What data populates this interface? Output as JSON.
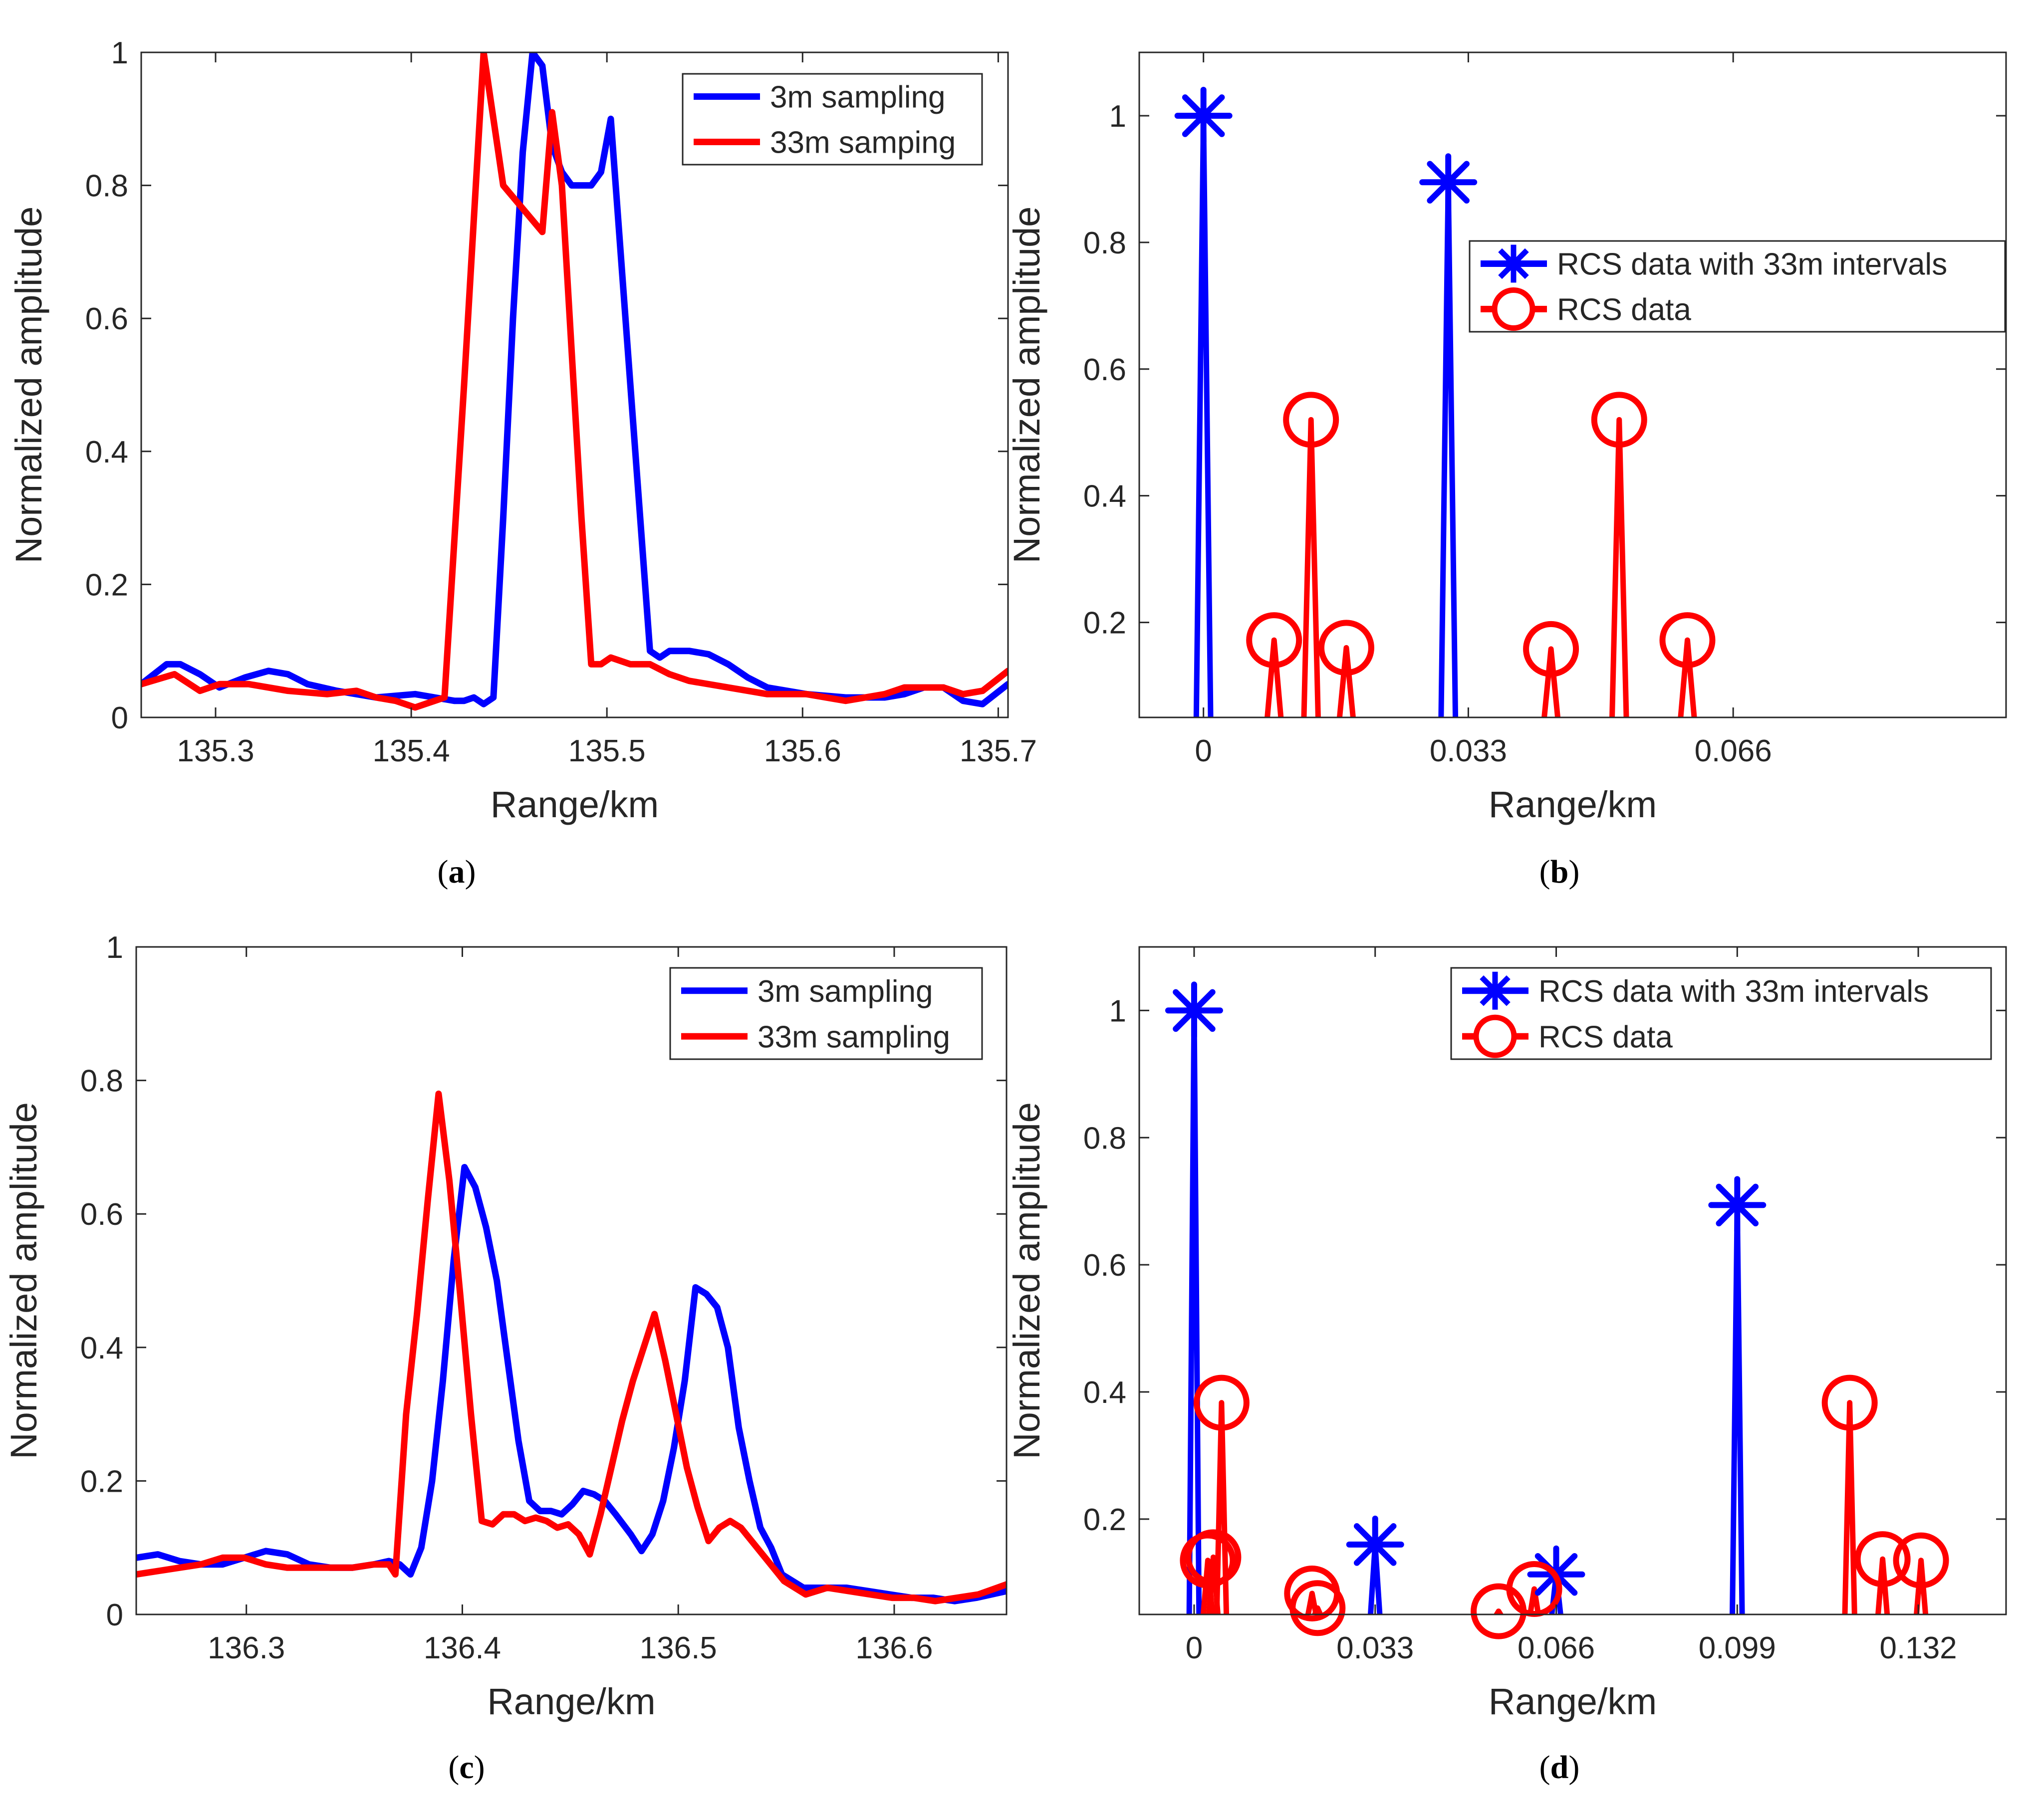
{
  "colors": {
    "blue": "#0000ff",
    "red": "#ff0000",
    "axis": "#262626"
  },
  "captions": [
    {
      "panel": "a",
      "open": "(",
      "letter": "a",
      "close": ")"
    },
    {
      "panel": "b",
      "open": "(",
      "letter": "b",
      "close": ")"
    },
    {
      "panel": "c",
      "open": "(",
      "letter": "c",
      "close": ")"
    },
    {
      "panel": "d",
      "open": "(",
      "letter": "d",
      "close": ")"
    }
  ],
  "chart_data": [
    {
      "id": "a",
      "type": "line",
      "xlabel": "Range/km",
      "ylabel": "Normalized amplitude",
      "xlim": [
        135.262,
        135.705
      ],
      "ylim": [
        0,
        1
      ],
      "xticks": [
        135.3,
        135.4,
        135.5,
        135.6,
        135.7
      ],
      "xtick_labels": [
        "135.3",
        "135.4",
        "135.5",
        "135.6",
        "135.7"
      ],
      "yticks": [
        0,
        0.2,
        0.4,
        0.6,
        0.8,
        1
      ],
      "ytick_labels": [
        "0",
        "0.2",
        "0.4",
        "0.6",
        "0.8",
        "1"
      ],
      "legend": {
        "position": "top-right",
        "entries": [
          {
            "label": "3m sampling",
            "color": "blue",
            "marker": "line"
          },
          {
            "label": "33m samping",
            "color": "red",
            "marker": "line"
          }
        ]
      },
      "series": [
        {
          "name": "3m sampling",
          "color": "blue",
          "x": [
            135.262,
            135.275,
            135.282,
            135.292,
            135.302,
            135.315,
            135.327,
            135.337,
            135.347,
            135.362,
            135.382,
            135.402,
            135.412,
            135.422,
            135.427,
            135.432,
            135.437,
            135.442,
            135.447,
            135.452,
            135.457,
            135.462,
            135.467,
            135.472,
            135.477,
            135.482,
            135.487,
            135.492,
            135.497,
            135.502,
            135.507,
            135.512,
            135.517,
            135.522,
            135.527,
            135.532,
            135.542,
            135.552,
            135.562,
            135.572,
            135.582,
            135.602,
            135.622,
            135.642,
            135.652,
            135.662,
            135.672,
            135.682,
            135.692,
            135.705
          ],
          "y": [
            0.05,
            0.08,
            0.08,
            0.065,
            0.045,
            0.06,
            0.07,
            0.065,
            0.05,
            0.04,
            0.03,
            0.035,
            0.03,
            0.025,
            0.025,
            0.03,
            0.02,
            0.03,
            0.3,
            0.6,
            0.85,
            1.0,
            0.98,
            0.86,
            0.82,
            0.8,
            0.8,
            0.8,
            0.82,
            0.9,
            0.7,
            0.5,
            0.3,
            0.1,
            0.09,
            0.1,
            0.1,
            0.095,
            0.08,
            0.06,
            0.045,
            0.035,
            0.03,
            0.03,
            0.035,
            0.045,
            0.045,
            0.025,
            0.02,
            0.05
          ]
        },
        {
          "name": "33m samping",
          "color": "red",
          "x": [
            135.262,
            135.279,
            135.292,
            135.302,
            135.317,
            135.337,
            135.357,
            135.372,
            135.382,
            135.392,
            135.402,
            135.407,
            135.412,
            135.417,
            135.427,
            135.437,
            135.447,
            135.467,
            135.472,
            135.477,
            135.482,
            135.487,
            135.492,
            135.497,
            135.502,
            135.507,
            135.512,
            135.517,
            135.522,
            135.532,
            135.542,
            135.562,
            135.582,
            135.602,
            135.622,
            135.642,
            135.652,
            135.672,
            135.682,
            135.692,
            135.705
          ],
          "y": [
            0.05,
            0.065,
            0.04,
            0.05,
            0.05,
            0.04,
            0.035,
            0.04,
            0.03,
            0.025,
            0.015,
            0.02,
            0.025,
            0.03,
            0.5,
            1.0,
            0.8,
            0.73,
            0.91,
            0.8,
            0.55,
            0.3,
            0.08,
            0.08,
            0.09,
            0.085,
            0.08,
            0.08,
            0.08,
            0.065,
            0.055,
            0.045,
            0.035,
            0.035,
            0.025,
            0.035,
            0.045,
            0.045,
            0.035,
            0.04,
            0.07
          ]
        }
      ]
    },
    {
      "id": "b",
      "type": "stem",
      "xlabel": "Range/km",
      "ylabel": "Normalized amplitude",
      "xlim": [
        -0.008,
        0.1
      ],
      "ylim": [
        0.05,
        1.1
      ],
      "xticks": [
        0,
        0.033,
        0.066
      ],
      "xtick_labels": [
        "0",
        "0.033",
        "0.066"
      ],
      "yticks": [
        0.2,
        0.4,
        0.6,
        0.8,
        1
      ],
      "ytick_labels": [
        "0.2",
        "0.4",
        "0.6",
        "0.8",
        "1"
      ],
      "legend": {
        "position": "center-right",
        "entries": [
          {
            "label": "RCS data  with 33m intervals",
            "color": "blue",
            "marker": "star"
          },
          {
            "label": "RCS data",
            "color": "red",
            "marker": "circle"
          }
        ]
      },
      "series": [
        {
          "name": "RCS data  with 33m intervals",
          "color": "blue",
          "marker": "star",
          "x": [
            0.0,
            0.0305
          ],
          "y": [
            1.0,
            0.895
          ]
        },
        {
          "name": "RCS data",
          "color": "red",
          "marker": "circle",
          "x": [
            0.0088,
            0.0134,
            0.0178,
            0.0433,
            0.0518,
            0.0603
          ],
          "y": [
            0.172,
            0.52,
            0.16,
            0.158,
            0.52,
            0.172
          ]
        }
      ]
    },
    {
      "id": "c",
      "type": "line",
      "xlabel": "Range/km",
      "ylabel": "Normalized amplitude",
      "xlim": [
        136.249,
        136.652
      ],
      "ylim": [
        0,
        1
      ],
      "xticks": [
        136.3,
        136.4,
        136.5,
        136.6
      ],
      "xtick_labels": [
        "136.3",
        "136.4",
        "136.5",
        "136.6"
      ],
      "yticks": [
        0,
        0.2,
        0.4,
        0.6,
        0.8,
        1
      ],
      "ytick_labels": [
        "0",
        "0.2",
        "0.4",
        "0.6",
        "0.8",
        "1"
      ],
      "legend": {
        "position": "top-right",
        "entries": [
          {
            "label": "3m sampling",
            "color": "blue",
            "marker": "line"
          },
          {
            "label": "33m sampling",
            "color": "red",
            "marker": "line"
          }
        ]
      },
      "series": [
        {
          "name": "3m sampling",
          "color": "blue",
          "x": [
            136.249,
            136.259,
            136.269,
            136.279,
            136.289,
            136.299,
            136.309,
            136.319,
            136.329,
            136.339,
            136.349,
            136.359,
            136.366,
            136.371,
            136.376,
            136.381,
            136.386,
            136.391,
            136.396,
            136.401,
            136.406,
            136.411,
            136.416,
            136.421,
            136.426,
            136.431,
            136.436,
            136.441,
            136.446,
            136.451,
            136.456,
            136.461,
            136.466,
            136.471,
            136.478,
            136.483,
            136.488,
            136.493,
            136.498,
            136.503,
            136.508,
            136.513,
            136.518,
            136.523,
            136.528,
            136.533,
            136.538,
            136.543,
            136.548,
            136.558,
            136.568,
            136.578,
            136.588,
            136.598,
            136.608,
            136.618,
            136.628,
            136.638,
            136.652
          ],
          "y": [
            0.085,
            0.09,
            0.08,
            0.075,
            0.075,
            0.085,
            0.095,
            0.09,
            0.075,
            0.07,
            0.07,
            0.075,
            0.08,
            0.075,
            0.06,
            0.1,
            0.2,
            0.35,
            0.53,
            0.67,
            0.64,
            0.58,
            0.5,
            0.38,
            0.26,
            0.17,
            0.155,
            0.155,
            0.15,
            0.165,
            0.185,
            0.18,
            0.17,
            0.15,
            0.12,
            0.095,
            0.12,
            0.17,
            0.25,
            0.35,
            0.49,
            0.48,
            0.46,
            0.4,
            0.28,
            0.2,
            0.13,
            0.1,
            0.06,
            0.04,
            0.04,
            0.04,
            0.035,
            0.03,
            0.025,
            0.025,
            0.02,
            0.025,
            0.035
          ]
        },
        {
          "name": "33m sampling",
          "color": "red",
          "x": [
            136.249,
            136.259,
            136.269,
            136.279,
            136.289,
            136.299,
            136.309,
            136.319,
            136.329,
            136.339,
            136.349,
            136.359,
            136.366,
            136.369,
            136.374,
            136.379,
            136.384,
            136.389,
            136.394,
            136.399,
            136.404,
            136.409,
            136.414,
            136.419,
            136.424,
            136.429,
            136.434,
            136.439,
            136.444,
            136.449,
            136.454,
            136.459,
            136.464,
            136.469,
            136.474,
            136.479,
            136.484,
            136.489,
            136.494,
            136.499,
            136.504,
            136.509,
            136.514,
            136.519,
            136.524,
            136.529,
            136.534,
            136.539,
            136.544,
            136.549,
            136.559,
            136.569,
            136.579,
            136.589,
            136.599,
            136.609,
            136.619,
            136.629,
            136.639,
            136.652
          ],
          "y": [
            0.06,
            0.065,
            0.07,
            0.075,
            0.085,
            0.085,
            0.075,
            0.07,
            0.07,
            0.07,
            0.07,
            0.075,
            0.075,
            0.06,
            0.3,
            0.45,
            0.62,
            0.78,
            0.65,
            0.48,
            0.3,
            0.14,
            0.135,
            0.15,
            0.15,
            0.14,
            0.145,
            0.14,
            0.13,
            0.135,
            0.12,
            0.09,
            0.15,
            0.22,
            0.29,
            0.35,
            0.4,
            0.45,
            0.38,
            0.3,
            0.22,
            0.16,
            0.11,
            0.13,
            0.14,
            0.13,
            0.11,
            0.09,
            0.07,
            0.05,
            0.03,
            0.04,
            0.035,
            0.03,
            0.025,
            0.025,
            0.02,
            0.025,
            0.03,
            0.045
          ]
        }
      ]
    },
    {
      "id": "d",
      "type": "stem",
      "xlabel": "Range/km",
      "ylabel": "Normalized amplitude",
      "xlim": [
        -0.01,
        0.148
      ],
      "ylim": [
        0.05,
        1.1
      ],
      "xticks": [
        0,
        0.033,
        0.066,
        0.099,
        0.132
      ],
      "xtick_labels": [
        "0",
        "0.033",
        "0.066",
        "0.099",
        "0.132"
      ],
      "yticks": [
        0.2,
        0.4,
        0.6,
        0.8,
        1
      ],
      "ytick_labels": [
        "0.2",
        "0.4",
        "0.6",
        "0.8",
        "1"
      ],
      "legend": {
        "position": "top-right",
        "entries": [
          {
            "label": "RCS data  with 33m intervals",
            "color": "blue",
            "marker": "star"
          },
          {
            "label": "RCS data",
            "color": "red",
            "marker": "circle"
          }
        ]
      },
      "series": [
        {
          "name": "RCS data  with 33m intervals",
          "color": "blue",
          "marker": "star",
          "x": [
            0.0,
            0.033,
            0.066,
            0.099
          ],
          "y": [
            1.0,
            0.16,
            0.113,
            0.694
          ]
        },
        {
          "name": "RCS data",
          "color": "red",
          "marker": "circle",
          "x": [
            0.0025,
            0.0035,
            0.005,
            0.0215,
            0.0225,
            0.0555,
            0.062,
            0.1195,
            0.1255,
            0.1325
          ],
          "y": [
            0.135,
            0.14,
            0.383,
            0.083,
            0.06,
            0.055,
            0.09,
            0.383,
            0.137,
            0.135
          ]
        }
      ]
    }
  ]
}
